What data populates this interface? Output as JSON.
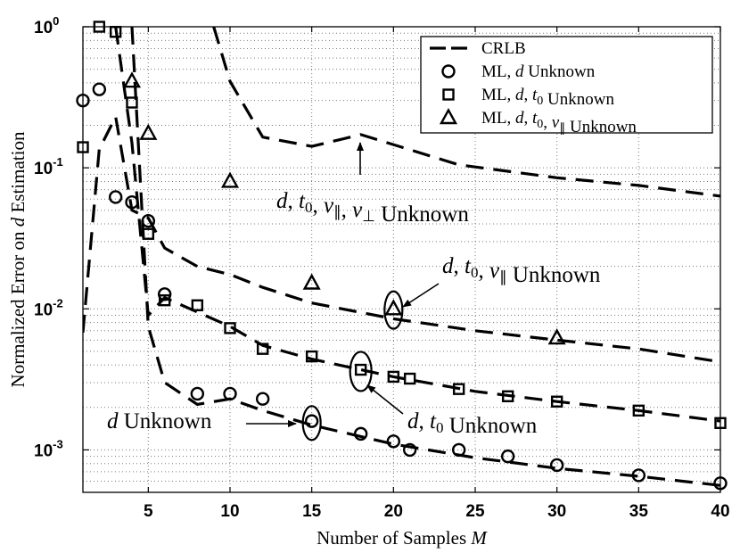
{
  "chart_data": {
    "type": "line",
    "xlabel": "Number of Samples M",
    "ylabel": "Normalized Error on d Estimation",
    "xlim": [
      1,
      40
    ],
    "ylim": [
      0.0005,
      1
    ],
    "yscale": "log",
    "grid": "dotted",
    "x_ticks": [
      "5",
      "10",
      "15",
      "20",
      "25",
      "30",
      "35",
      "40"
    ],
    "y_ticks": [
      "10",
      "10",
      "10",
      "10"
    ],
    "y_tick_exponents": [
      "0",
      "-1",
      "-2",
      "-3"
    ],
    "legend_position": "top-right",
    "legend": [
      {
        "label": "CRLB",
        "marker": "dashed-line"
      },
      {
        "label": "ML, d Unknown",
        "marker": "circle"
      },
      {
        "label": "ML, d, t0 Unknown",
        "marker": "square"
      },
      {
        "label": "ML, d, t0, v∥ Unknown",
        "marker": "triangle"
      }
    ],
    "series": [
      {
        "name": "CRLB",
        "condition": "d, t0, v∥, v⊥ Unknown",
        "style": "dashed",
        "x": [
          9,
          10,
          12,
          15,
          18,
          24,
          30,
          35,
          40
        ],
        "y": [
          1.0,
          0.41,
          0.165,
          0.142,
          0.172,
          0.105,
          0.085,
          0.075,
          0.063
        ]
      },
      {
        "name": "CRLB",
        "condition": "d, t0, v∥ Unknown",
        "style": "dashed",
        "x": [
          1,
          2,
          3,
          4,
          5,
          6,
          8,
          10,
          12,
          15,
          20,
          25,
          30,
          35,
          40
        ],
        "y": [
          0.0068,
          0.135,
          0.23,
          0.05,
          0.044,
          0.027,
          0.02,
          0.0175,
          0.0142,
          0.011,
          0.0085,
          0.007,
          0.006,
          0.0052,
          0.0042
        ]
      },
      {
        "name": "CRLB",
        "condition": "d, t0 Unknown",
        "style": "dashed",
        "x": [
          3,
          4,
          5,
          6,
          8,
          10,
          12,
          15,
          20,
          25,
          30,
          35,
          40
        ],
        "y": [
          1.0,
          0.15,
          0.009,
          0.012,
          0.0095,
          0.0075,
          0.0055,
          0.0044,
          0.0033,
          0.0026,
          0.0022,
          0.0019,
          0.0016
        ]
      },
      {
        "name": "CRLB",
        "condition": "d Unknown",
        "style": "dashed",
        "x": [
          4,
          5,
          6,
          8,
          10,
          12,
          15,
          20,
          25,
          30,
          35,
          40
        ],
        "y": [
          1.0,
          0.0075,
          0.003,
          0.0021,
          0.0023,
          0.0019,
          0.0015,
          0.0011,
          0.00088,
          0.00074,
          0.00065,
          0.00056
        ]
      },
      {
        "name": "ML, d Unknown",
        "marker": "circle",
        "x": [
          1,
          2,
          3,
          4,
          5,
          6,
          8,
          10,
          12,
          15,
          18,
          20,
          21,
          24,
          27,
          30,
          35,
          40
        ],
        "y": [
          0.3,
          0.36,
          0.062,
          0.057,
          0.042,
          0.0127,
          0.0025,
          0.0025,
          0.0023,
          0.0016,
          0.0013,
          0.00115,
          0.001,
          0.001,
          0.0009,
          0.00078,
          0.00066,
          0.00058
        ]
      },
      {
        "name": "ML, d, t0 Unknown",
        "marker": "square",
        "x": [
          1,
          2,
          3,
          4,
          5,
          6,
          8,
          10,
          12,
          15,
          18,
          20,
          21,
          24,
          27,
          30,
          35,
          40
        ],
        "y": [
          0.14,
          1.0,
          0.92,
          0.29,
          0.034,
          0.0115,
          0.0106,
          0.0073,
          0.0052,
          0.0046,
          0.0037,
          0.0033,
          0.0032,
          0.0027,
          0.0024,
          0.0022,
          0.0019,
          0.00155
        ]
      },
      {
        "name": "ML, d, t0, v∥ Unknown",
        "marker": "triangle",
        "x": [
          4,
          5,
          10,
          15,
          20,
          30
        ],
        "y": [
          0.41,
          0.175,
          0.08,
          0.0152,
          0.01,
          0.0062
        ]
      }
    ],
    "annotations": [
      {
        "text": "d, t0, v∥, v⊥ Unknown"
      },
      {
        "text": "d, t0, v∥ Unknown"
      },
      {
        "text": "d, t0 Unknown"
      },
      {
        "text": "d Unknown"
      }
    ]
  }
}
